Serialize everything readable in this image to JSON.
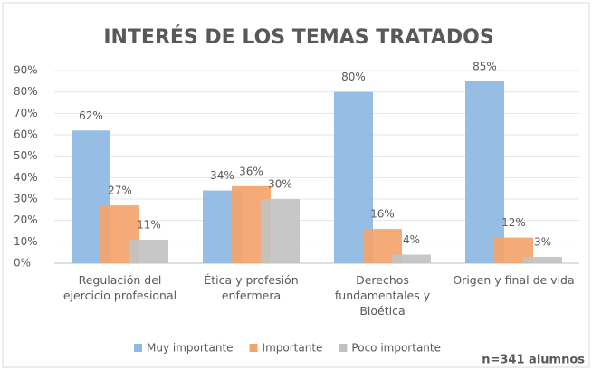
{
  "chart_data": {
    "type": "bar",
    "title": "INTERÉS DE LOS TEMAS TRATADOS",
    "annotation": "n=341 alumnos",
    "categories": [
      "Regulación del ejercicio profesional",
      "Ética y profesión enfermera",
      "Derechos fundamentales y Bioética",
      "Origen y final de vida"
    ],
    "series": [
      {
        "name": "Muy importante",
        "color": "#8db9e3",
        "values": [
          62,
          34,
          80,
          85
        ],
        "value_labels": [
          "62%",
          "34%",
          "80%",
          "85%"
        ]
      },
      {
        "name": "Importante",
        "color": "#f3a46c",
        "values": [
          27,
          36,
          16,
          12
        ],
        "value_labels": [
          "27%",
          "36%",
          "16%",
          "12%"
        ]
      },
      {
        "name": "Poco importante",
        "color": "#c2c2c2",
        "values": [
          11,
          30,
          4,
          3
        ],
        "value_labels": [
          "11%",
          "30%",
          "4%",
          "3%"
        ]
      }
    ],
    "ylim": [
      0,
      90
    ],
    "yticks": [
      {
        "value": 0,
        "label": "0%"
      },
      {
        "value": 10,
        "label": "10%"
      },
      {
        "value": 20,
        "label": "20%"
      },
      {
        "value": 30,
        "label": "30%"
      },
      {
        "value": 40,
        "label": "40%"
      },
      {
        "value": 50,
        "label": "50%"
      },
      {
        "value": 60,
        "label": "60%"
      },
      {
        "value": 70,
        "label": "70%"
      },
      {
        "value": 80,
        "label": "80%"
      },
      {
        "value": 90,
        "label": "90%"
      }
    ],
    "grid": true,
    "legend": "bottom"
  }
}
